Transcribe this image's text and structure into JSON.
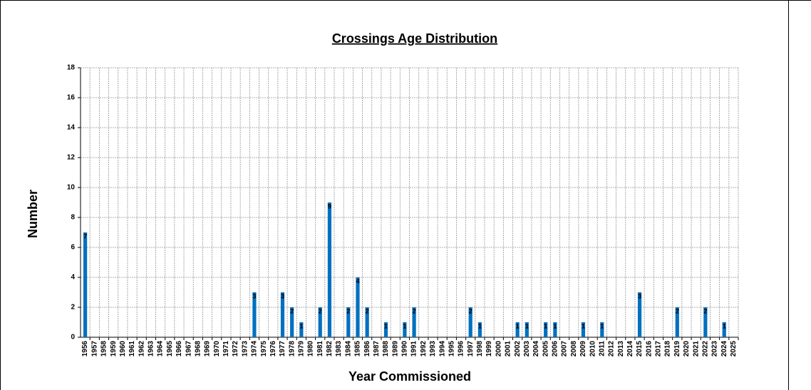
{
  "chart_data": {
    "type": "bar",
    "title": "Crossings Age Distribution",
    "x_label": "Year Commissioned",
    "y_label": "Number",
    "categories": [
      "1956",
      "1957",
      "1958",
      "1959",
      "1960",
      "1961",
      "1962",
      "1963",
      "1964",
      "1965",
      "1966",
      "1967",
      "1968",
      "1969",
      "1970",
      "1971",
      "1972",
      "1973",
      "1974",
      "1975",
      "1976",
      "1977",
      "1978",
      "1979",
      "1980",
      "1981",
      "1982",
      "1983",
      "1984",
      "1985",
      "1986",
      "1987",
      "1988",
      "1989",
      "1990",
      "1991",
      "1992",
      "1993",
      "1994",
      "1995",
      "1996",
      "1997",
      "1998",
      "1999",
      "2000",
      "2001",
      "2002",
      "2003",
      "2004",
      "2005",
      "2006",
      "2007",
      "2008",
      "2009",
      "2010",
      "2011",
      "2012",
      "2013",
      "2014",
      "2015",
      "2016",
      "2017",
      "2018",
      "2019",
      "2020",
      "2021",
      "2022",
      "2023",
      "2024",
      "2025"
    ],
    "values": [
      7,
      0,
      0,
      0,
      0,
      0,
      0,
      0,
      0,
      0,
      0,
      0,
      0,
      0,
      0,
      0,
      0,
      0,
      3,
      0,
      0,
      3,
      2,
      1,
      0,
      2,
      9,
      0,
      2,
      4,
      2,
      0,
      1,
      0,
      1,
      2,
      0,
      0,
      0,
      0,
      0,
      2,
      1,
      0,
      0,
      0,
      1,
      1,
      0,
      1,
      1,
      0,
      0,
      1,
      0,
      1,
      0,
      0,
      0,
      3,
      0,
      0,
      0,
      2,
      0,
      0,
      2,
      0,
      1,
      0
    ],
    "color": "#0070c0",
    "ylim": [
      0,
      18
    ],
    "yticks": [
      0,
      2,
      4,
      6,
      8,
      10,
      12,
      14,
      16,
      18
    ],
    "grid": true
  }
}
